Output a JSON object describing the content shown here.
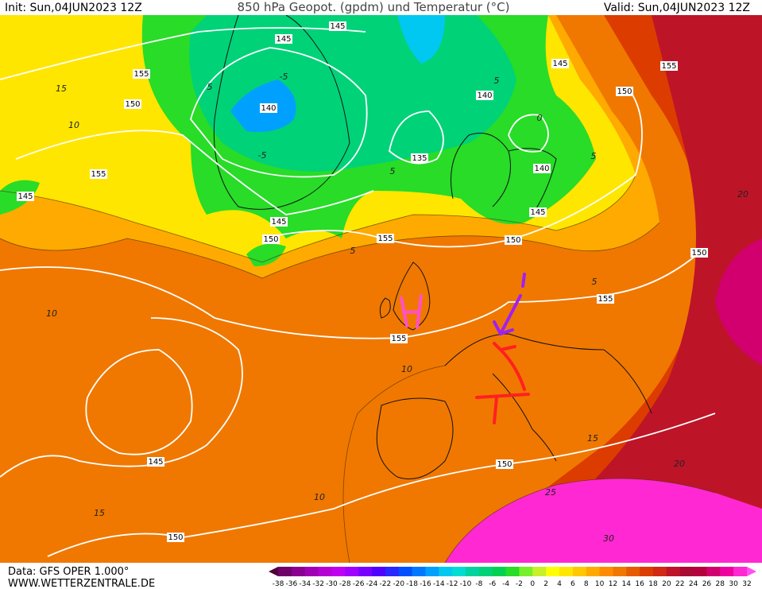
{
  "header": {
    "init": "Init: Sun,04JUN2023 12Z",
    "title": "850 hPa Geopot. (gpdm) und Temperatur (°C)",
    "valid": "Valid: Sun,04JUN2023 12Z"
  },
  "map": {
    "geopotential_labels": [
      "145",
      "145",
      "155",
      "150",
      "145",
      "155",
      "140",
      "150",
      "140",
      "135",
      "140",
      "155",
      "145",
      "145",
      "145",
      "150",
      "155",
      "150",
      "150",
      "155",
      "155",
      "145",
      "150",
      "150"
    ],
    "temperature_labels": [
      "15",
      "10",
      "-5",
      "5",
      "-5",
      "5",
      "5",
      "0",
      "5",
      "20",
      "5",
      "5",
      "10",
      "10",
      "15",
      "20",
      "15",
      "10",
      "25",
      "30"
    ],
    "annotations": [
      "H",
      "T"
    ]
  },
  "footer": {
    "data": "Data: GFS OPER 1.000°",
    "site": "WWW.WETTERZENTRALE.DE"
  },
  "legend": {
    "ticks": [
      -38,
      -36,
      -34,
      -32,
      -30,
      -28,
      -26,
      -24,
      -22,
      -20,
      -18,
      -16,
      -14,
      -12,
      -10,
      -8,
      -6,
      -4,
      -2,
      0,
      2,
      4,
      6,
      8,
      10,
      12,
      14,
      16,
      18,
      20,
      22,
      24,
      26,
      28,
      30,
      32
    ],
    "colors": [
      "#50003c",
      "#6e0068",
      "#8a0090",
      "#a000b4",
      "#b400d2",
      "#c000f0",
      "#a000ff",
      "#7800ff",
      "#5000ff",
      "#2828ff",
      "#0050ff",
      "#0078ff",
      "#00a0ff",
      "#00c8f0",
      "#00dcd2",
      "#00d2a0",
      "#00d278",
      "#00d250",
      "#28dc28",
      "#78f028",
      "#c8f028",
      "#ffff00",
      "#ffe600",
      "#ffc800",
      "#ffaa00",
      "#ff8c00",
      "#f07800",
      "#e65a00",
      "#dc3c00",
      "#d22814",
      "#be1428",
      "#aa0a32",
      "#b4003c",
      "#d2006e",
      "#f000a0",
      "#ff28d2",
      "#ff50f0"
    ]
  }
}
